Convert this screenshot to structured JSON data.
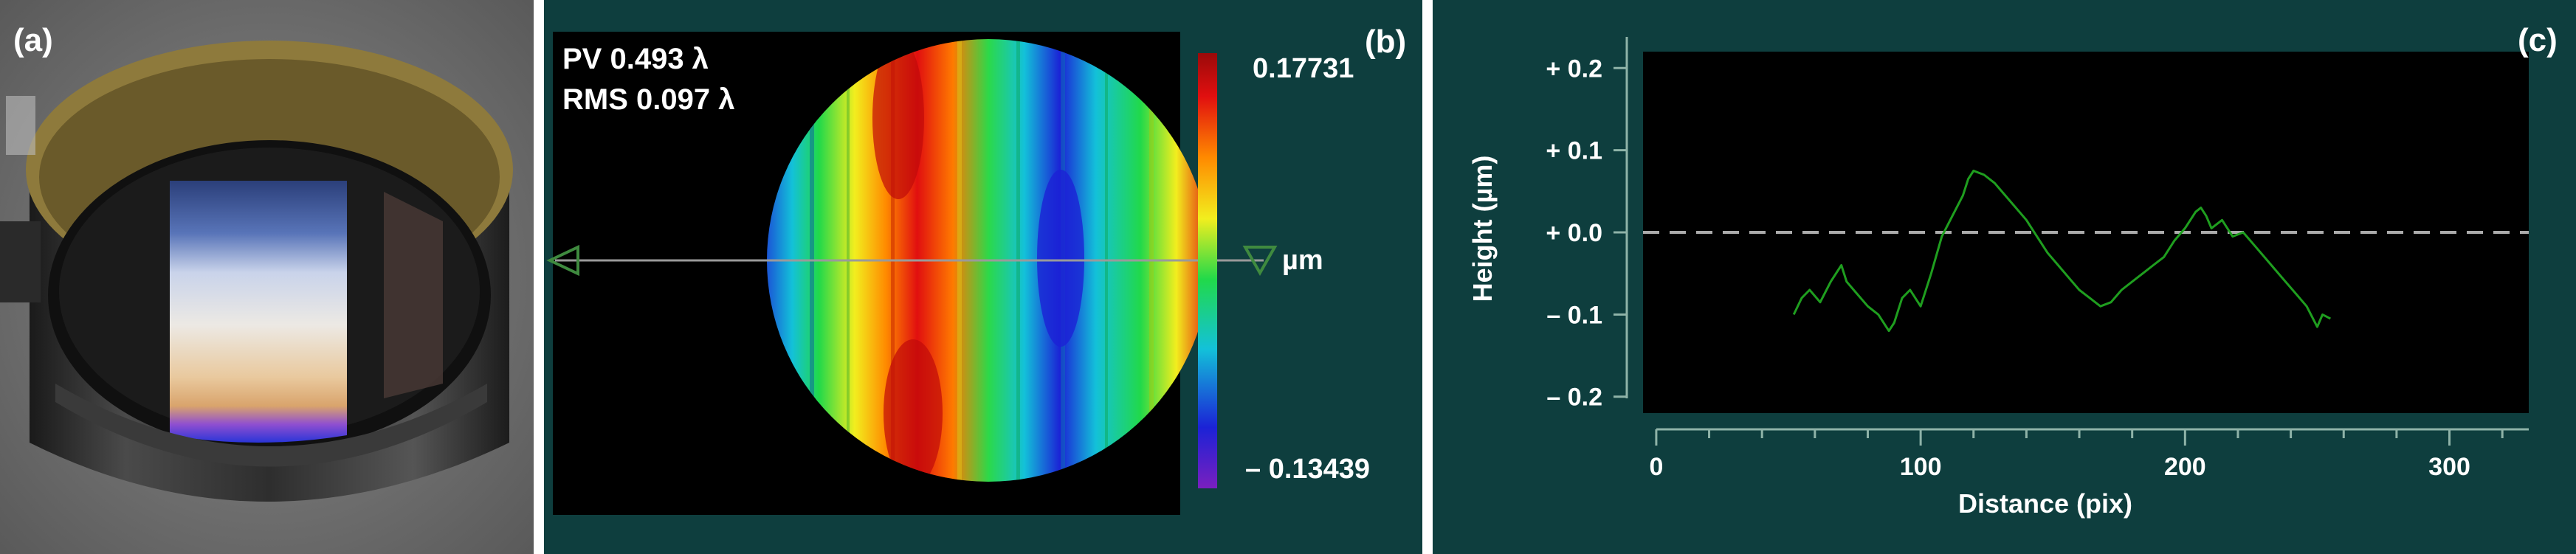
{
  "panel_a": {
    "label": "(a)"
  },
  "panel_b": {
    "label": "(b)",
    "pv_text": "PV 0.493 λ",
    "rms_text": "RMS 0.097 λ",
    "colorbar_max": "0.17731",
    "colorbar_min": "– 0.13439",
    "colorbar_unit": "µm",
    "colors": [
      "#7a1fbf",
      "#1b22d6",
      "#13c1d9",
      "#21d94a",
      "#f2ee1e",
      "#ff8a00",
      "#e10f0f",
      "#9a0a0a"
    ]
  },
  "panel_c": {
    "label": "(c)"
  },
  "chart_data": {
    "type": "line",
    "title": "",
    "xlabel": "Distance (pix)",
    "ylabel": "Height (µm)",
    "xlim": [
      0,
      330
    ],
    "ylim": [
      -0.2,
      0.2
    ],
    "x_ticks": [
      0,
      100,
      200,
      300
    ],
    "x_tick_labels": [
      "0",
      "100",
      "200",
      "300"
    ],
    "y_ticks": [
      0.2,
      0.1,
      0.0,
      -0.1,
      -0.2
    ],
    "y_tick_labels": [
      "+ 0.2",
      "+ 0.1",
      "+ 0.0",
      "– 0.1",
      "– 0.2"
    ],
    "reference_line": {
      "y": 0.0,
      "style": "dashed",
      "color": "#aaaaaa"
    },
    "grid": false,
    "series": [
      {
        "color": "#1f9e1f",
        "x": [
          52,
          55,
          58,
          62,
          66,
          70,
          72,
          76,
          80,
          84,
          88,
          90,
          93,
          96,
          100,
          104,
          108,
          112,
          116,
          118,
          120,
          124,
          128,
          132,
          136,
          140,
          144,
          148,
          152,
          156,
          160,
          164,
          168,
          172,
          176,
          180,
          184,
          188,
          192,
          196,
          200,
          204,
          206,
          208,
          210,
          214,
          218,
          222,
          226,
          230,
          234,
          238,
          242,
          246,
          250,
          252,
          255
        ],
        "y": [
          -0.1,
          -0.08,
          -0.07,
          -0.085,
          -0.06,
          -0.04,
          -0.06,
          -0.075,
          -0.09,
          -0.1,
          -0.12,
          -0.11,
          -0.08,
          -0.07,
          -0.09,
          -0.05,
          -0.005,
          0.02,
          0.045,
          0.065,
          0.075,
          0.07,
          0.06,
          0.045,
          0.03,
          0.015,
          -0.005,
          -0.025,
          -0.04,
          -0.055,
          -0.07,
          -0.08,
          -0.09,
          -0.085,
          -0.07,
          -0.06,
          -0.05,
          -0.04,
          -0.03,
          -0.01,
          0.005,
          0.025,
          0.03,
          0.02,
          0.005,
          0.015,
          -0.005,
          0.0,
          -0.015,
          -0.03,
          -0.045,
          -0.06,
          -0.075,
          -0.09,
          -0.115,
          -0.1,
          -0.105
        ]
      }
    ]
  }
}
